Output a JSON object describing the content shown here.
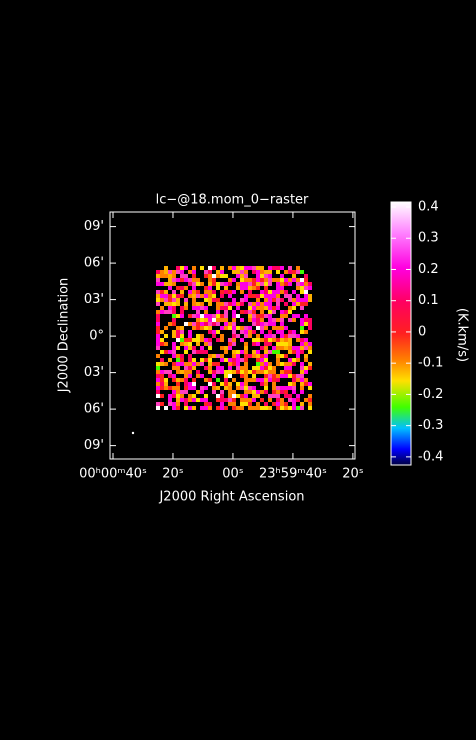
{
  "chart_data": {
    "type": "image",
    "title": "lc−@18.mom_0−raster",
    "x_label": "J2000 Right Ascension",
    "y_label": "J2000 Declination",
    "xlim": [
      41,
      -40.7
    ],
    "xticks": [
      {
        "value": 40,
        "label": "00ʰ00ᵐ40ˢ"
      },
      {
        "value": 20,
        "label": "20ˢ"
      },
      {
        "value": 0,
        "label": "00ˢ"
      },
      {
        "value": -20,
        "label": "23ʰ59ᵐ40ˢ"
      },
      {
        "value": -40,
        "label": "20ˢ"
      }
    ],
    "ylim": [
      -10.1,
      10.2
    ],
    "yticks": [
      {
        "value": 9,
        "label": "09'"
      },
      {
        "value": 6,
        "label": "06'"
      },
      {
        "value": 3,
        "label": "03'"
      },
      {
        "value": 0,
        "label": "0°"
      },
      {
        "value": -3,
        "label": "03'"
      },
      {
        "value": -6,
        "label": "06'"
      },
      {
        "value": -9,
        "label": "09'"
      }
    ],
    "colorbar": {
      "label": "(K.km/s)",
      "lim": [
        -0.426,
        0.416
      ],
      "ticks": [
        0.4,
        0.3,
        0.2,
        0.1,
        0,
        -0.1,
        -0.2,
        -0.3,
        -0.4
      ]
    }
  }
}
